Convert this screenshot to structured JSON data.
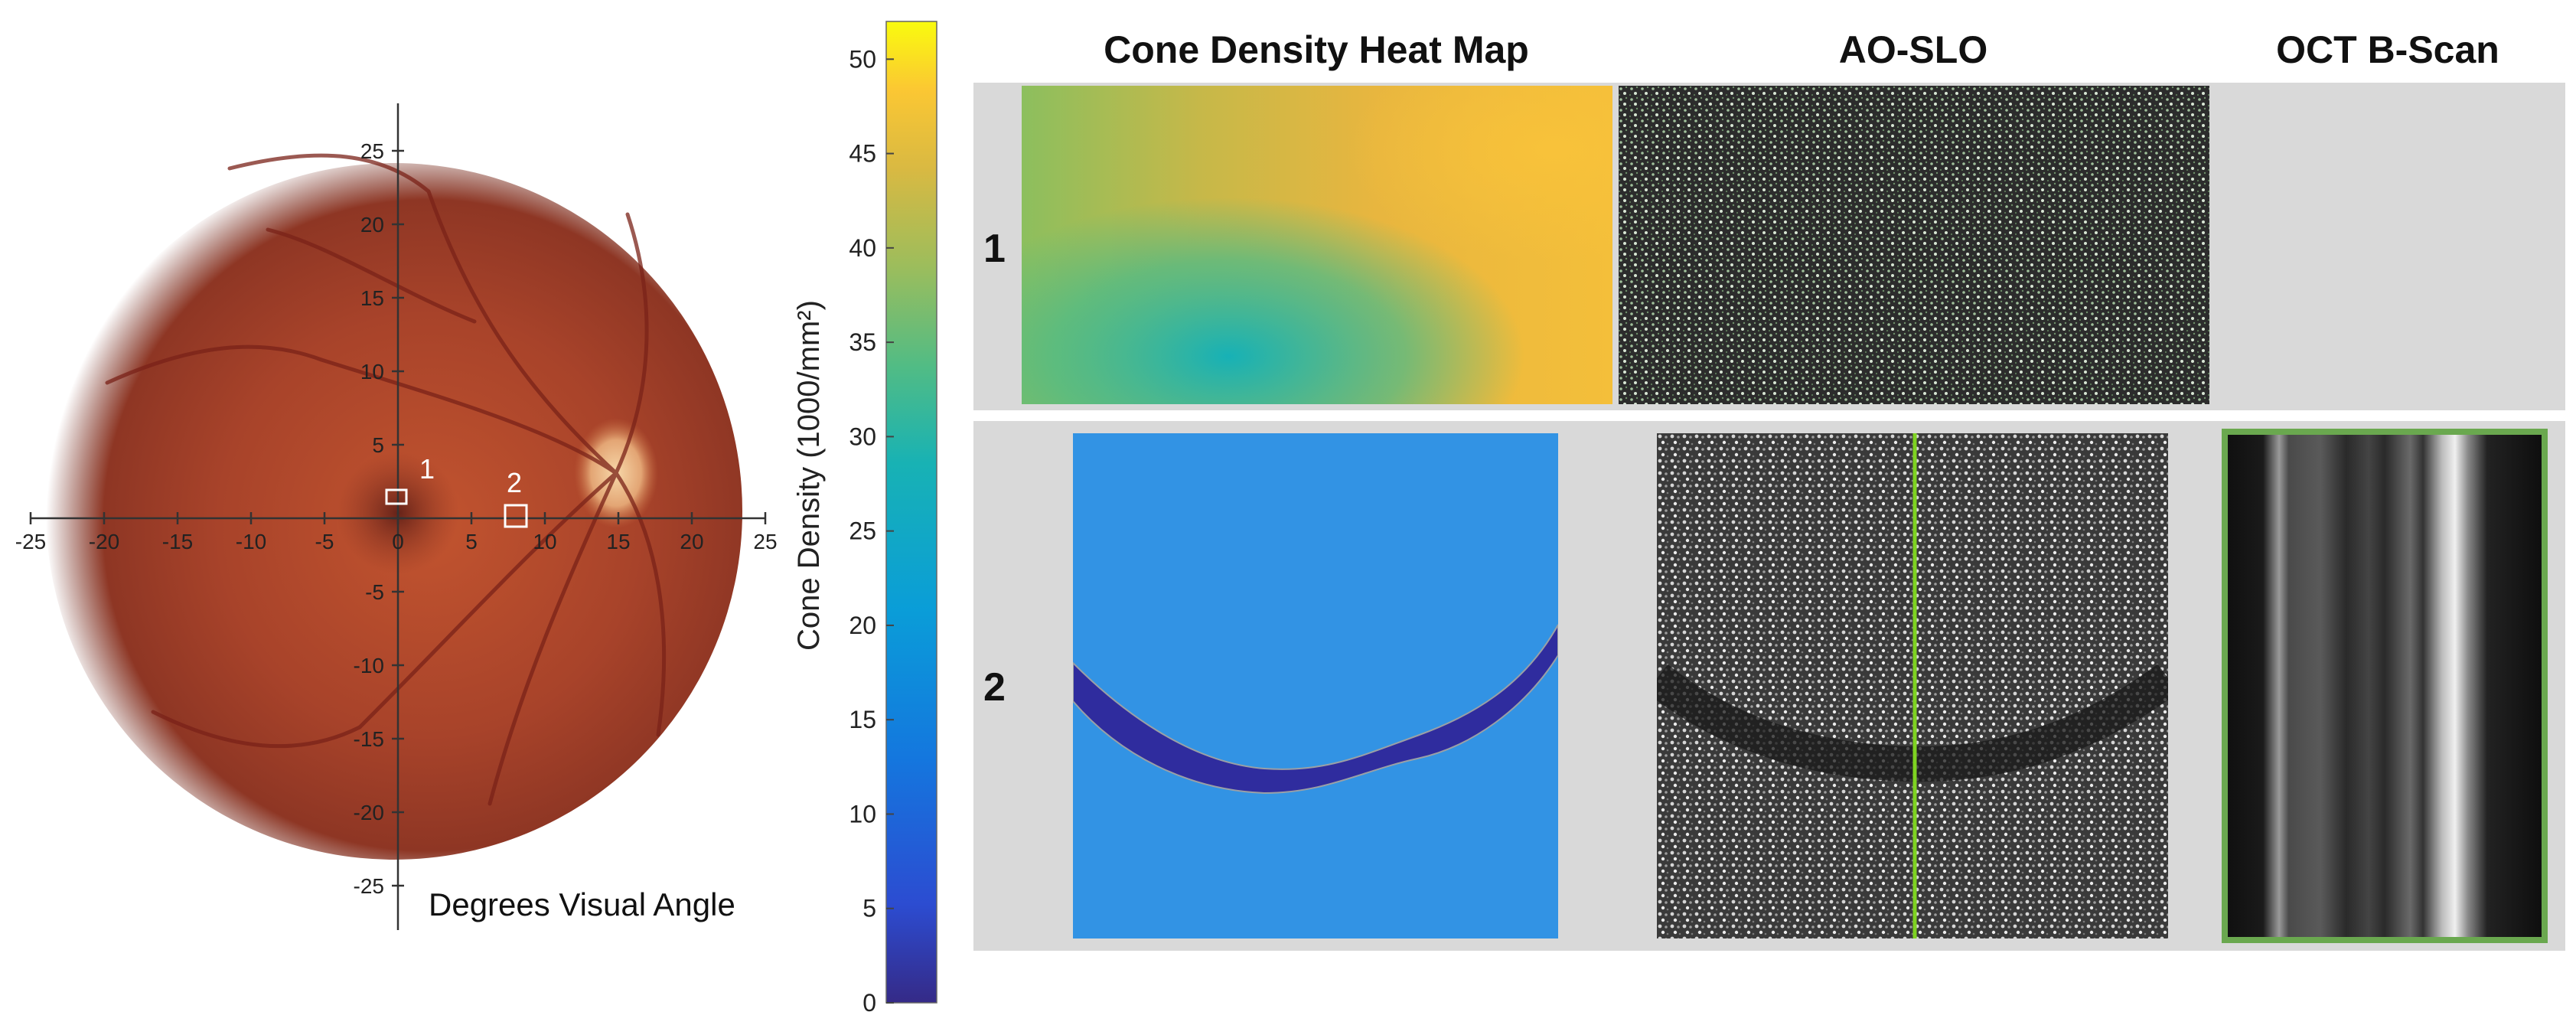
{
  "fundus": {
    "axis_ticks": [
      "-25",
      "-20",
      "-15",
      "-10",
      "-5",
      "0",
      "5",
      "10",
      "15",
      "20",
      "25"
    ],
    "axis_title": "Degrees Visual Angle",
    "regions": [
      {
        "label": "1",
        "x_deg": 0,
        "y_deg": 1.2
      },
      {
        "label": "2",
        "x_deg": 8,
        "y_deg": 0
      }
    ]
  },
  "colorbar": {
    "title": "Cone Density (1000/mm²)",
    "ticks": [
      "0",
      "5",
      "10",
      "15",
      "20",
      "25",
      "30",
      "35",
      "40",
      "45",
      "50"
    ],
    "range": [
      0,
      52
    ],
    "colormap": "parula"
  },
  "columns": {
    "heat_map": "Cone Density Heat Map",
    "ao_slo": "AO-SLO",
    "oct": "OCT B-Scan"
  },
  "rows": {
    "row1": "1",
    "row2": "2"
  },
  "colors": {
    "panel_background": "#d9d9d9",
    "oct_border": "#6aa84f",
    "slo_line": "#7ed321",
    "fundus": "#b34a2c"
  }
}
